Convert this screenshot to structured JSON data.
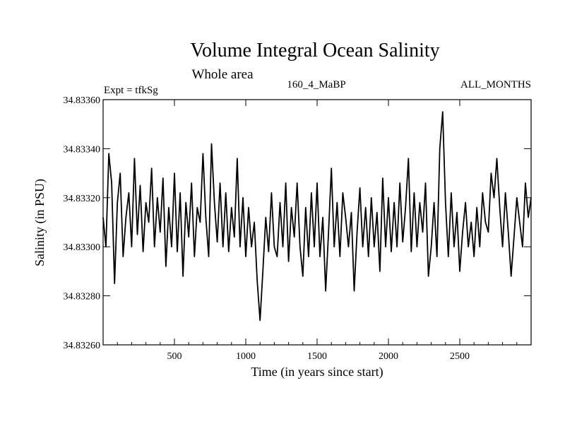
{
  "chart_data": {
    "type": "line",
    "title": "Volume Integral Ocean Salinity",
    "subtitle": "Whole area",
    "annotations": {
      "left": "Expt = tfkSg",
      "center": "160_4_MaBP",
      "right": "ALL_MONTHS"
    },
    "xlabel": "Time (in years since start)",
    "ylabel": "Salinity (in PSU)",
    "xlim": [
      0,
      3000
    ],
    "ylim": [
      34.8326,
      34.8336
    ],
    "xticks": [
      500,
      1000,
      1500,
      2000,
      2500
    ],
    "xtick_labels": [
      "500",
      "1000",
      "1500",
      "2000",
      "2500"
    ],
    "yticks": [
      34.8326,
      34.8328,
      34.833,
      34.8332,
      34.8334,
      34.8336
    ],
    "ytick_labels": [
      "34.83260",
      "34.83280",
      "34.83300",
      "34.83320",
      "34.83340",
      "34.83360"
    ],
    "grid": false,
    "series": [
      {
        "name": "salinity",
        "color": "#000000",
        "x": [
          0,
          20,
          40,
          60,
          80,
          100,
          120,
          140,
          160,
          180,
          200,
          220,
          240,
          260,
          280,
          300,
          320,
          340,
          360,
          380,
          400,
          420,
          440,
          460,
          480,
          500,
          520,
          540,
          560,
          580,
          600,
          620,
          640,
          660,
          680,
          700,
          720,
          740,
          760,
          780,
          800,
          820,
          840,
          860,
          880,
          900,
          920,
          940,
          960,
          980,
          1000,
          1020,
          1040,
          1060,
          1080,
          1100,
          1120,
          1140,
          1160,
          1180,
          1200,
          1220,
          1240,
          1260,
          1280,
          1300,
          1320,
          1340,
          1360,
          1380,
          1400,
          1420,
          1440,
          1460,
          1480,
          1500,
          1520,
          1540,
          1560,
          1580,
          1600,
          1620,
          1640,
          1660,
          1680,
          1700,
          1720,
          1740,
          1760,
          1780,
          1800,
          1820,
          1840,
          1860,
          1880,
          1900,
          1920,
          1940,
          1960,
          1980,
          2000,
          2020,
          2040,
          2060,
          2080,
          2100,
          2120,
          2140,
          2160,
          2180,
          2200,
          2220,
          2240,
          2260,
          2280,
          2300,
          2320,
          2340,
          2360,
          2380,
          2400,
          2420,
          2440,
          2460,
          2480,
          2500,
          2520,
          2540,
          2560,
          2580,
          2600,
          2620,
          2640,
          2660,
          2680,
          2700,
          2720,
          2740,
          2760,
          2780,
          2800,
          2820,
          2840,
          2860,
          2880,
          2900,
          2920,
          2940,
          2960,
          2980,
          3000
        ],
        "values": [
          34.83312,
          34.833,
          34.83338,
          34.83326,
          34.83285,
          34.83318,
          34.8333,
          34.83296,
          34.83312,
          34.83322,
          34.833,
          34.83336,
          34.83305,
          34.83325,
          34.83298,
          34.83318,
          34.8331,
          34.83332,
          34.833,
          34.8332,
          34.83306,
          34.83328,
          34.83292,
          34.83316,
          34.833,
          34.8333,
          34.83298,
          34.83322,
          34.83288,
          34.83318,
          34.83304,
          34.83326,
          34.83296,
          34.83316,
          34.8331,
          34.83338,
          34.83312,
          34.83296,
          34.83342,
          34.83318,
          34.83302,
          34.83326,
          34.833,
          34.83322,
          34.83298,
          34.83316,
          34.83304,
          34.83336,
          34.833,
          34.8332,
          34.83296,
          34.83316,
          34.833,
          34.8331,
          34.83286,
          34.8327,
          34.8329,
          34.83312,
          34.83298,
          34.83322,
          34.833,
          34.83296,
          34.83318,
          34.833,
          34.83326,
          34.83294,
          34.83316,
          34.83304,
          34.83326,
          34.833,
          34.83288,
          34.83316,
          34.83296,
          34.83322,
          34.833,
          34.83326,
          34.83296,
          34.83312,
          34.83282,
          34.83306,
          34.83332,
          34.833,
          34.83318,
          34.83296,
          34.83322,
          34.83312,
          34.833,
          34.83314,
          34.83282,
          34.83306,
          34.83324,
          34.833,
          34.83316,
          34.83296,
          34.8332,
          34.833,
          34.83314,
          34.8329,
          34.83328,
          34.833,
          34.8332,
          34.83298,
          34.83318,
          34.833,
          34.83326,
          34.83302,
          34.83316,
          34.83336,
          34.83298,
          34.83322,
          34.833,
          34.83318,
          34.83306,
          34.83326,
          34.83288,
          34.833,
          34.83318,
          34.83296,
          34.8334,
          34.83355,
          34.83318,
          34.83296,
          34.83322,
          34.833,
          34.83314,
          34.8329,
          34.83306,
          34.83318,
          34.833,
          34.8331,
          34.83296,
          34.83316,
          34.833,
          34.83322,
          34.8331,
          34.83306,
          34.8333,
          34.8332,
          34.83336,
          34.83316,
          34.833,
          34.83322,
          34.83306,
          34.83288,
          34.83304,
          34.8332,
          34.8331,
          34.833,
          34.83326,
          34.83312,
          34.8332
        ]
      }
    ]
  }
}
